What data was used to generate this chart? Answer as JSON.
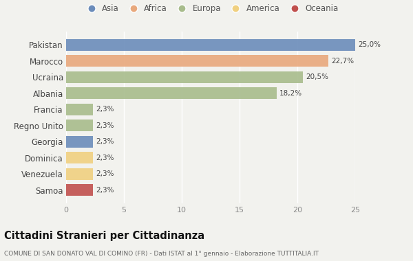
{
  "countries": [
    "Pakistan",
    "Marocco",
    "Ucraina",
    "Albania",
    "Francia",
    "Regno Unito",
    "Georgia",
    "Dominica",
    "Venezuela",
    "Samoa"
  ],
  "values": [
    25.0,
    22.7,
    20.5,
    18.2,
    2.3,
    2.3,
    2.3,
    2.3,
    2.3,
    2.3
  ],
  "labels": [
    "25,0%",
    "22,7%",
    "20,5%",
    "18,2%",
    "2,3%",
    "2,3%",
    "2,3%",
    "2,3%",
    "2,3%",
    "2,3%"
  ],
  "colors": [
    "#6b8cba",
    "#e8a87c",
    "#a8bc8c",
    "#a8bc8c",
    "#a8bc8c",
    "#a8bc8c",
    "#6b8cba",
    "#f0d080",
    "#f0d080",
    "#c0504d"
  ],
  "legend_labels": [
    "Asia",
    "Africa",
    "Europa",
    "America",
    "Oceania"
  ],
  "legend_colors": [
    "#6b8cba",
    "#e8a87c",
    "#a8bc8c",
    "#f0d080",
    "#c0504d"
  ],
  "title": "Cittadini Stranieri per Cittadinanza",
  "subtitle": "COMUNE DI SAN DONATO VAL DI COMINO (FR) - Dati ISTAT al 1° gennaio - Elaborazione TUTTITALIA.IT",
  "xlim": [
    0,
    25
  ],
  "xticks": [
    0,
    5,
    10,
    15,
    20,
    25
  ],
  "background_color": "#f2f2ee",
  "plot_bg_color": "#f2f2ee"
}
